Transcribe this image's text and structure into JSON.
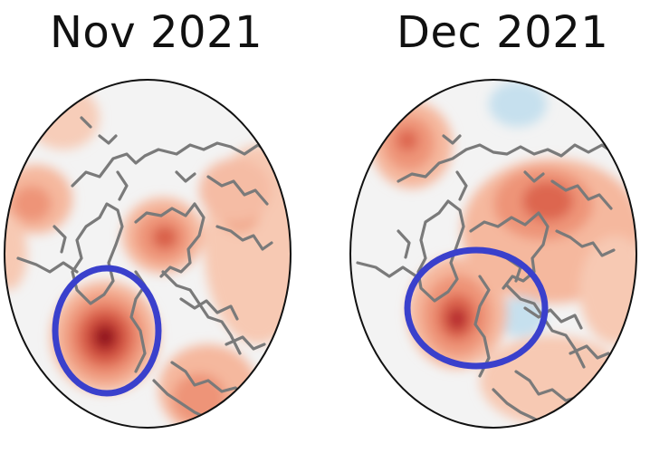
{
  "panels": [
    {
      "title": "Nov 2021"
    },
    {
      "title": "Dec 2021"
    }
  ],
  "colors": {
    "background": "#f3f3f3",
    "coastline": "#7a7a7a",
    "frame": "#111111",
    "highlight_circle": "#3a40cc",
    "warm_light": "#f7c9b3",
    "warm_medium": "#ee9478",
    "warm_strong": "#cf4a3c",
    "warm_max": "#8b0d1f",
    "cool_light": "#c6e0ee"
  }
}
